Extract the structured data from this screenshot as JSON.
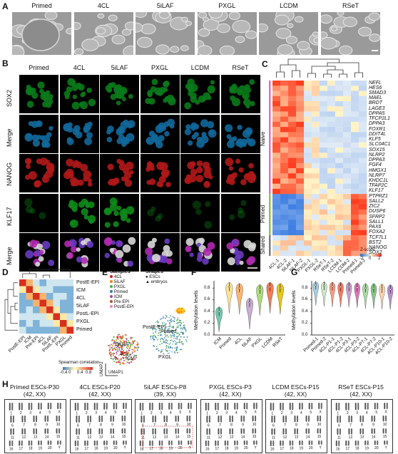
{
  "panels": {
    "A": "A",
    "B": "B",
    "C": "C",
    "D": "D",
    "E": "E",
    "F": "F",
    "G": "G",
    "H": "H"
  },
  "conditions": [
    "Primed",
    "4CL",
    "5iLAF",
    "PXGL",
    "LCDM",
    "RSeT"
  ],
  "panelB": {
    "rows": [
      "SOX2",
      "Merge",
      "NANOG",
      "KLF17",
      "Merge"
    ],
    "row_colors": [
      "#0a7a1a",
      "#12689a",
      "#b01818",
      "#0e8a18",
      "#8a2a8a"
    ]
  },
  "panelC": {
    "columns": [
      "4CL-1",
      "4CL-2",
      "5iLAF-1",
      "5iLAF-2",
      "PXGL-1",
      "PXGL-2",
      "RSeT-1",
      "RSeT-2",
      "LCDM-1",
      "LCDM-2",
      "Primed-1",
      "Primed-2"
    ],
    "groups": [
      "Naive",
      "Primed",
      "Shared"
    ],
    "genes": [
      "NEFL",
      "HES6",
      "SMAD3",
      "MAEL",
      "BRDT",
      "LAGE3",
      "DPPA5",
      "TFCP2L1",
      "DPPA3",
      "FOXR1",
      "DDIT4L",
      "KLF5",
      "SLC04C1",
      "SOX15",
      "NLRP2",
      "DPPA3",
      "FGF4",
      "HMGX1",
      "NLRP7",
      "KHDC1L",
      "TFAP2C",
      "KLF17",
      "PTPRZ1",
      "SALL2",
      "ZIC2",
      "DUSP6",
      "SFRP2",
      "SALL1",
      "PAX6",
      "FOXA2",
      "TCF7L1",
      "BST2",
      "NANOG",
      "SOX2"
    ],
    "legend_title": "Z-score",
    "legend_ticks": [
      "-2",
      "0",
      "2"
    ]
  },
  "panelD": {
    "labels": [
      "PostE-EPI",
      "ICM",
      "4CL",
      "5iLAF",
      "PostL-EPI",
      "PXGL",
      "Primed"
    ],
    "bottom_labels": [
      "PostE-EPI",
      "ICM",
      "Pre-EPI",
      "4CL",
      "5iLAF",
      "PostL-EPI",
      "PXGL",
      "Primed"
    ],
    "legend_title": "Spearman correlation",
    "legend_ticks": [
      "-0.4",
      "0",
      "0.4",
      "0.8"
    ]
  },
  "panelE": {
    "samples_title": "Samples",
    "samples": [
      {
        "name": "4CL",
        "color": "#e41a1c"
      },
      {
        "name": "5iLAF",
        "color": "#ff7f00"
      },
      {
        "name": "PXGL",
        "color": "#4daf4a"
      },
      {
        "name": "Primed",
        "color": "#377eb8"
      },
      {
        "name": "ICM",
        "color": "#984ea3"
      },
      {
        "name": "Pre-EPI",
        "color": "#a65628"
      },
      {
        "name": "PostE-EPI",
        "color": "#f781bf"
      }
    ],
    "shapes_title": "Shapes",
    "shapes": [
      "ESCs",
      "embryos"
    ],
    "cluster_labels": [
      "PostE-EPI",
      "5iLAF",
      "4CL",
      "ICM",
      "PXGL",
      "Primed"
    ],
    "axis_x": "UMAP1",
    "axis_y": "UMAP2"
  },
  "panelF": {
    "ylabel": "Methylation levels",
    "yticks": [
      "0.0",
      "0.2",
      "0.4",
      "0.6",
      "0.8"
    ],
    "categories": [
      "ICM",
      "Primed",
      "4CL",
      "5iLAF",
      "PXGL",
      "LCDM",
      "RSeT"
    ]
  },
  "panelG": {
    "ylabel": "Methylation levels",
    "yticks": [
      "0.0",
      "0.2",
      "0.4",
      "0.6",
      "0.8"
    ],
    "categories": [
      "Primed-1",
      "Primed-2",
      "4CL-P1-1",
      "4CL-P1-2",
      "4CL-P3-1",
      "4CL-P3-2",
      "4CL-P7-1",
      "4CL-P7-2",
      "4CL-P10-1",
      "4CL-P10-2"
    ]
  },
  "panelH": {
    "karyotypes": [
      {
        "title": "Primed ESCs-P30",
        "sub": "(42, XX)"
      },
      {
        "title": "4CL ESCs-P20",
        "sub": "(42, XX)"
      },
      {
        "title": "5iLAF ESCs-P8",
        "sub": "(39, XX)"
      },
      {
        "title": "PXGL ESCs-P3",
        "sub": "(42, XX)"
      },
      {
        "title": "LCDM ESCs-P15",
        "sub": "(42, XX)"
      },
      {
        "title": "RSeT ESCs-P15",
        "sub": "(42, XX)"
      }
    ],
    "row1": [
      "1",
      "2",
      "3",
      "4",
      "5",
      "X"
    ],
    "row2": [
      "6",
      "7",
      "8",
      "9",
      "10"
    ],
    "row3": [
      "11",
      "12",
      "13",
      "14",
      "15"
    ],
    "row4": [
      "16",
      "17",
      "18",
      "19",
      "20",
      "Y"
    ]
  },
  "chart_data": [
    {
      "type": "heatmap",
      "title": "",
      "x": [
        "4CL-1",
        "4CL-2",
        "5iLAF-1",
        "5iLAF-2",
        "PXGL-1",
        "PXGL-2",
        "RSeT-1",
        "RSeT-2",
        "LCDM-1",
        "LCDM-2",
        "Primed-1",
        "Primed-2"
      ],
      "y_groups": [
        "Naive",
        "Primed",
        "Shared"
      ],
      "legend": "Z-score",
      "range": [
        -2,
        2
      ]
    },
    {
      "type": "heatmap",
      "title": "",
      "x": [
        "PostE-EPI",
        "ICM",
        "Pre-EPI",
        "4CL",
        "5iLAF",
        "PostL-EPI",
        "PXGL",
        "Primed"
      ],
      "legend": "Spearman correlation",
      "range": [
        -0.4,
        0.8
      ]
    },
    {
      "type": "scatter",
      "title": "",
      "xlabel": "UMAP1",
      "ylabel": "UMAP2",
      "series": [
        {
          "name": "4CL"
        },
        {
          "name": "5iLAF"
        },
        {
          "name": "PXGL"
        },
        {
          "name": "Primed"
        },
        {
          "name": "ICM"
        },
        {
          "name": "Pre-EPI"
        },
        {
          "name": "PostE-EPI"
        }
      ]
    },
    {
      "type": "violin",
      "title": "",
      "ylabel": "Methylation levels",
      "ylim": [
        0,
        0.9
      ],
      "categories": [
        "ICM",
        "Primed",
        "4CL",
        "5iLAF",
        "PXGL",
        "LCDM",
        "RSeT"
      ],
      "medians": [
        0.4,
        0.82,
        0.8,
        0.55,
        0.78,
        0.82,
        0.8
      ]
    },
    {
      "type": "violin",
      "title": "",
      "ylabel": "Methylation levels",
      "ylim": [
        0,
        0.9
      ],
      "categories": [
        "Primed-1",
        "Primed-2",
        "4CL-P1-1",
        "4CL-P1-2",
        "4CL-P3-1",
        "4CL-P3-2",
        "4CL-P7-1",
        "4CL-P7-2",
        "4CL-P10-1",
        "4CL-P10-2"
      ],
      "medians": [
        0.85,
        0.84,
        0.83,
        0.82,
        0.82,
        0.81,
        0.8,
        0.8,
        0.79,
        0.78
      ]
    }
  ]
}
